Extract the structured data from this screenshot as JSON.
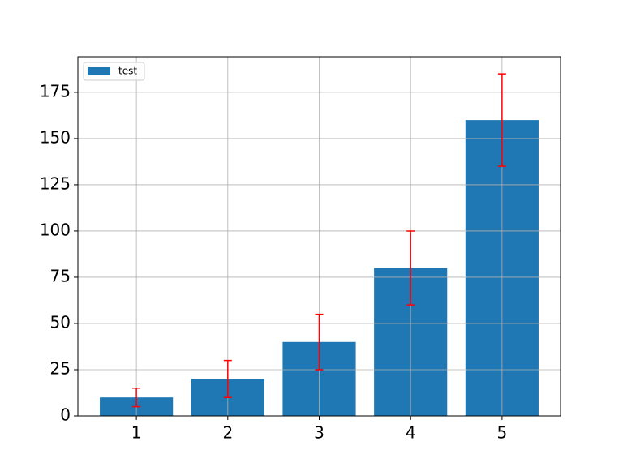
{
  "chart_data": {
    "type": "bar",
    "x": [
      1,
      2,
      3,
      4,
      5
    ],
    "series": [
      {
        "name": "test",
        "color": "#1f77b4",
        "values": [
          10,
          20,
          40,
          80,
          160
        ],
        "errors": [
          5,
          10,
          15,
          20,
          25
        ]
      }
    ],
    "error_color": "#ff0000",
    "xlim": [
      0.36,
      5.64
    ],
    "xticks": [
      1,
      2,
      3,
      4,
      5
    ],
    "ylim": [
      0,
      194.25
    ],
    "yticks": [
      0,
      25,
      50,
      75,
      100,
      125,
      150,
      175
    ],
    "grid": true,
    "legend": "upper-left"
  }
}
